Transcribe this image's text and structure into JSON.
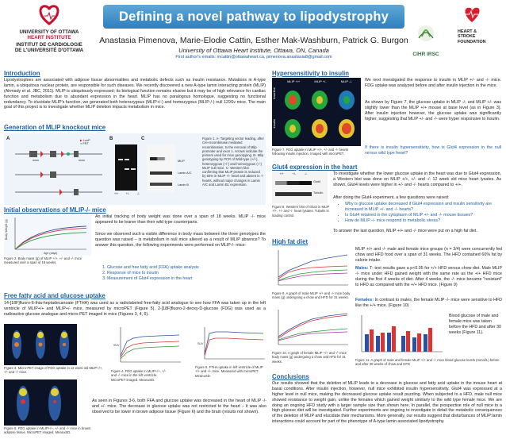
{
  "header": {
    "university": "UNIVERSITY OF OTTAWA",
    "heart_institute": "HEART INSTITUTE",
    "institut": "INSTITUT DE CARDIOLOGIE",
    "institut_uo": "DE L'UNIVERSITÉ D'OTTAWA",
    "title": "Defining a novel pathway to lipodystrophy",
    "authors": "Anastasia Pimenova, Marie-Elodie Cattin, Esther Mak-Washburn, Patrick G. Burgon",
    "affiliation": "University of Ottawa Heart Institute, Ottawa, ON, Canada",
    "email": "First author's emails:  mcattin@ottawaheart.ca,  pimenova.anastasia8@gmail.com",
    "cihr_logo": "CIHR IRSC",
    "heart_logo_line1": "HEART &",
    "heart_logo_line2": "STROKE",
    "heart_logo_line3": "FOUNDATION"
  },
  "intro": {
    "title": "Introduction",
    "text": "Lipodystrophies are associated with adipose tissue abnormalities and metabolic defects such as insulin resistance. Mutations in A-type lamin, a ubiquitous nuclear protein, are responsible for such diseases. We recently discovered a new A-type lamin interacting protein (MLIP) (Ahmady et al. JBC, 2011). MLIP is ubiquitously expressed; its biological function remains elusive but it may be of high relevance for cardiac function and metabolism due to abundant expression in the heart. MLIP has no paralogous homologue, suggesting no functional redundancy. To elucidate MLIP's function, we generated both heterozygous (MLIP+/-) and homozygous (MLIP-/-) null 129Sv mice. The main goal of this project is to investigate whether MLIP deletion impacts metabolism in mice."
  },
  "generation": {
    "title": "Generation of MLIP knockout mice",
    "panel_a": "A",
    "panel_b": "B",
    "panel_c": "C",
    "legend": [
      "LoxP",
      "FRT"
    ],
    "gene_labels": [
      "MLIP",
      "Lamin A/C",
      "Lamin B"
    ],
    "gel_labels": [
      "+/+",
      "+/-",
      "-/-"
    ],
    "caption": "Figure 1. A- Targeting vector leading, after Cre-recombinase mediated recombination, to the removal of Mlip promoter and exon 1. Arrows indicate the primers used for mice genotyping. B- Mlip genotyping by PCR of Wild-type (+/+), heterozygous (+/-) and homozygous (-/-) MLIP null mice. C- Western blot confirming that MLIP protein is reduced by 50% in MLIP +/- heart and absent in -/- hearts, without major changes in Lamin A/C and Lamin B1 expression."
  },
  "initial": {
    "title": "Initial observations of MLIP-/- mice",
    "intro_text": "An initial tracking of body weight was done over a span of 18 weeks. MLIP -/- mice appeared to be leaner than their wild type counterparts.",
    "text2": "Since we observed such a visible difference in body mass between the three genotypes the question was raised – is metabolism in null mice altered as a result of MLIP absence? To answer this question, the following experiments were performed on MLIP-/- mice:",
    "list": [
      "Glucose and free fatty acid (FFA) uptake analysis",
      "Response of mice to insulin",
      "Measurement of Glut4 expression in the heart"
    ],
    "caption": "Figure 2. Body mass (g) of MLIP +/+, +/- and -/- mice measured over a span of 18 weeks.",
    "ylabel": "Body Weight (g)",
    "xlabel": "Age (days)"
  },
  "ffa": {
    "title": "Free fatty acid and glucose uptake",
    "text": "14-[18F]fluoro-6-thia-heptadecanoate (FTHA) was used as a radiolabeled free-fatty acid analogue to see how FFA was taken up in the left ventricle of MLIP+/+ and MLIP+/- mice, measured by microPET (Figure 5). 2-[18F]fluoro-2-deoxy-D-glucose (FDG) was used as a radioactive glucose analogue and micro-PET imaged in mice (Figures 3, 4, 6).",
    "fig3_caption": "Figure 3. Micro-PET image of FDG uptake in 12 week old MLIP+/+, +/- and -/- mice.",
    "fig4_caption": "Figure 4. FDG uptake in MLIP+/+, +/- and -/- mice in the left ventricle. MicroPET imaged. Mean±SD.",
    "fig5_caption": "Figure 5. FTHA uptake in left ventricle of MLIP +/+ and +/- mice. Measured with microPET. Mean±SD.",
    "fig6_caption": "Figure 6. FDG uptake in MLIP+/+, +/- and -/- mice in brown adipose tissue. MicroPET imaged. Mean±SD.",
    "text2": "As seen in Figures 3-6, both FFA and glucose uptake was decreased in the heart of MLIP -/- and +/- mice. The decrease in glucose uptake was not restricted to the heart – it was also observed to be lower in brown adipose tissue (Figure 6) and the brain (results not shown).",
    "fig4_ylabel": "SUV",
    "fig5_ylabel": "SUV"
  },
  "hyper": {
    "title": "Hypersensitivity to insulin",
    "row_labels": [
      "baseline",
      "insulin"
    ],
    "col_labels": [
      "MLIP +/+",
      "MLIP +/-",
      "MLIP -/-"
    ],
    "text1": "We next investigated the response to insulin in MLIP +/- and -/- mice. FDG uptake was analyzed before and after insulin injection in the mice.",
    "text2": "As shown by Figure 7, the glucose uptake in MLIP -/- and MLIP +/- was slightly lower than the MLIP +/+ mouse at base level (as in Figure 3). After insulin injection however, the glucose uptake was significantly higher, suggesting that MLIP +/- and -/- were hyper responsive to insulin.",
    "question": "If there is insulin hypersensitivity, how is Glut4 expression in the null versus wild type heart?",
    "caption": "Figure 7. FDG uptake in MLIP +/+, +/- and -/- hearts following insulin injection. Imaged with microPET."
  },
  "glut4": {
    "title": "Glut4 expression in the heart",
    "wb_cols": [
      "+/+",
      "+/-",
      "-/-"
    ],
    "wb_rows": [
      "Glut4",
      "Tubulin"
    ],
    "caption": "Figure 8. Western blot of Glut4 in MLIP +/+, +/- and -/- heart lysates. Tubulin is loading control.",
    "text1": "To investigate whether the lower glucose uptake in the heart was due to Glut4 expression, a Western blot was done on MLIP +/+, +/- and -/- 12 week old mice heart lysates. As shown, Glut4 levels were higher in +/- and -/- hearts compared to +/+.",
    "text2": "After doing the Glut4 experiment, a few questions were raised:",
    "questions": [
      "Why is glucose uptake decreased if Glut4 expression and insulin sensitivity are increased in MLIP +/- and -/- hearts?",
      "Is Glut4 retained in the cytoplasm of MLIP +/- and -/- mouse tissues?",
      "How do MLIP -/- mice respond to metabolic stress?"
    ],
    "answer": "To answer the last question, MLIP +/+ and -/- mice were put on a high fat diet."
  },
  "hfd": {
    "title": "High fat diet",
    "text1": "MLIP +/+ and -/- male and female mice groups (n = 3/4) were concurrently fed chow and HFD food over a span of 31 weeks. The HFD contained 60% fat by calorie intake.",
    "males_label": "Males:",
    "males_text": " T- test results gave a p<0.05 for +/+ HFD versus chow diet. Male MLIP -/- mice under HFD gained weight with the same rate as the +/+ HFD mice during the first 4 weeks of diet. After 4 weeks, the -/- mice became \"resistant\" to HFD as compared with the +/+ HFD mice. (Figure 9)",
    "females_label": "Females:",
    "females_text": " In contrast to males, the female MLIP -/- mice were sensitive to HFD like the +/+ mice. (Figure 10)",
    "text3": "Blood glucose of male and female mice was taken before the HFD and after 30 weeks (Figure 11).",
    "fig9_caption": "Figure 9. A graph of male MLIP +/+ and -/- mice body mass (g) undergoing a chow and HFD for 31 weeks.",
    "fig10_caption": "Figure 10. A graph of female MLIP +/+ and -/- mice body mass (g) undergoing a chow and HFD for 31 weeks.",
    "fig11_caption": "Figure 11. A graph of male and female MLIP +/+ and -/- mice blood glucose levels (mmol/L) before and after 30 weeks of chow and HFD"
  },
  "conclusions": {
    "title": "Conclusions",
    "text": "Our results showed that the deletion of MLIP leads to a decrease in glucose and fatty acid uptake in the mouse heart at basal conditions. After insulin injection, however, null mice exhibited insulin hypersensitivity. Glut4 was expressed at a higher level in null mice, making the decreased glucose uptake result puzzling. When subjected to a HFD, male null mice showed resistance to weight gain, unlike the females which gained weight similarly to the wild type female mice. We are doing an ongoing HFD study with a larger sample size than shown here. In parallel, the prospective role of null mice to a high glucose diet will be investigated. Further experiments are ongoing to investigate in detail the metabolic consequences of the deletion of MLIP and elucidate their mechanisms. More generally, our results suggest that disturbances of MLIP:lamin interactions could account for part of the phenotype of A-type lamin associated lipodystrophy."
  },
  "colors": {
    "accent": "#1f5fa3",
    "title_bar": "#3d8cc8",
    "uo_red": "#c8102e"
  }
}
